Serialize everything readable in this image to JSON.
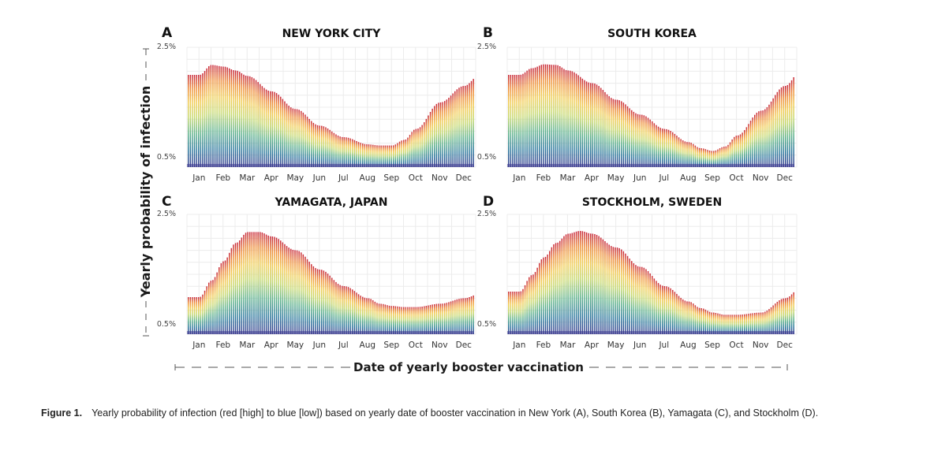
{
  "figure": {
    "y_axis_label": "Yearly probability of infection",
    "x_axis_label": "Date of yearly booster vaccination"
  },
  "caption": {
    "label": "Figure 1.",
    "text": "Yearly probability of infection (red [high] to blue [low]) based on yearly date of booster vaccination in New York (A), South Korea (B), Yamagata (C), and Stockholm (D)."
  },
  "chart_data": [
    {
      "type": "area",
      "panel": "A",
      "title": "NEW YORK CITY",
      "ylim": [
        0.5,
        2.5
      ],
      "y_ticks": [
        "2.5%",
        "0.5%"
      ],
      "x_ticks": [
        "Jan",
        "Feb",
        "Mar",
        "Apr",
        "May",
        "Jun",
        "Jul",
        "Aug",
        "Sep",
        "Oct",
        "Nov",
        "Dec"
      ],
      "grid": true,
      "series": [
        {
          "x": [
            0,
            0.5,
            1,
            1.5,
            2,
            3,
            4,
            5,
            6,
            7,
            7.5,
            8,
            8.5,
            9,
            10,
            11,
            11.6
          ],
          "y": [
            2.0,
            2.18,
            2.15,
            2.08,
            1.98,
            1.7,
            1.38,
            1.08,
            0.87,
            0.74,
            0.72,
            0.72,
            0.82,
            1.02,
            1.5,
            1.8,
            1.98
          ]
        }
      ]
    },
    {
      "type": "area",
      "panel": "B",
      "title": "SOUTH KOREA",
      "ylim": [
        0.5,
        2.5
      ],
      "y_ticks": [
        "2.5%",
        "0.5%"
      ],
      "x_ticks": [
        "Jan",
        "Feb",
        "Mar",
        "Apr",
        "May",
        "Jun",
        "Jul",
        "Aug",
        "Sep",
        "Oct",
        "Nov",
        "Dec"
      ],
      "grid": true,
      "series": [
        {
          "x": [
            0,
            0.5,
            1,
            1.5,
            2,
            3,
            4,
            5,
            6,
            7,
            7.5,
            8,
            8.5,
            9,
            10,
            11,
            11.6
          ],
          "y": [
            2.0,
            2.12,
            2.19,
            2.18,
            2.08,
            1.85,
            1.55,
            1.28,
            1.02,
            0.78,
            0.67,
            0.62,
            0.7,
            0.9,
            1.35,
            1.8,
            2.05
          ]
        }
      ]
    },
    {
      "type": "area",
      "panel": "C",
      "title": "YAMAGATA, JAPAN",
      "ylim": [
        0.5,
        2.5
      ],
      "y_ticks": [
        "2.5%",
        "0.5%"
      ],
      "x_ticks": [
        "Jan",
        "Feb",
        "Mar",
        "Apr",
        "May",
        "Jun",
        "Jul",
        "Aug",
        "Sep",
        "Oct",
        "Nov",
        "Dec"
      ],
      "grid": true,
      "series": [
        {
          "x": [
            0,
            0.5,
            1,
            1.5,
            2,
            2.5,
            3,
            4,
            5,
            6,
            7,
            7.5,
            8,
            8.5,
            9,
            10,
            11,
            11.6
          ],
          "y": [
            1.0,
            1.3,
            1.65,
            1.98,
            2.18,
            2.18,
            2.1,
            1.85,
            1.5,
            1.2,
            0.98,
            0.88,
            0.84,
            0.82,
            0.82,
            0.88,
            0.98,
            1.05
          ]
        }
      ]
    },
    {
      "type": "area",
      "panel": "D",
      "title": "STOCKHOLM, SWEDEN",
      "ylim": [
        0.5,
        2.5
      ],
      "y_ticks": [
        "2.5%",
        "0.5%"
      ],
      "x_ticks": [
        "Jan",
        "Feb",
        "Mar",
        "Apr",
        "May",
        "Jun",
        "Jul",
        "Aug",
        "Sep",
        "Oct",
        "Nov",
        "Dec"
      ],
      "grid": true,
      "series": [
        {
          "x": [
            0,
            0.5,
            1,
            1.5,
            2,
            2.5,
            3,
            4,
            5,
            6,
            7,
            7.5,
            8,
            8.5,
            9,
            10,
            11,
            11.6
          ],
          "y": [
            1.1,
            1.4,
            1.72,
            1.98,
            2.15,
            2.2,
            2.15,
            1.9,
            1.55,
            1.2,
            0.92,
            0.8,
            0.72,
            0.68,
            0.68,
            0.72,
            0.98,
            1.15
          ]
        }
      ]
    }
  ]
}
